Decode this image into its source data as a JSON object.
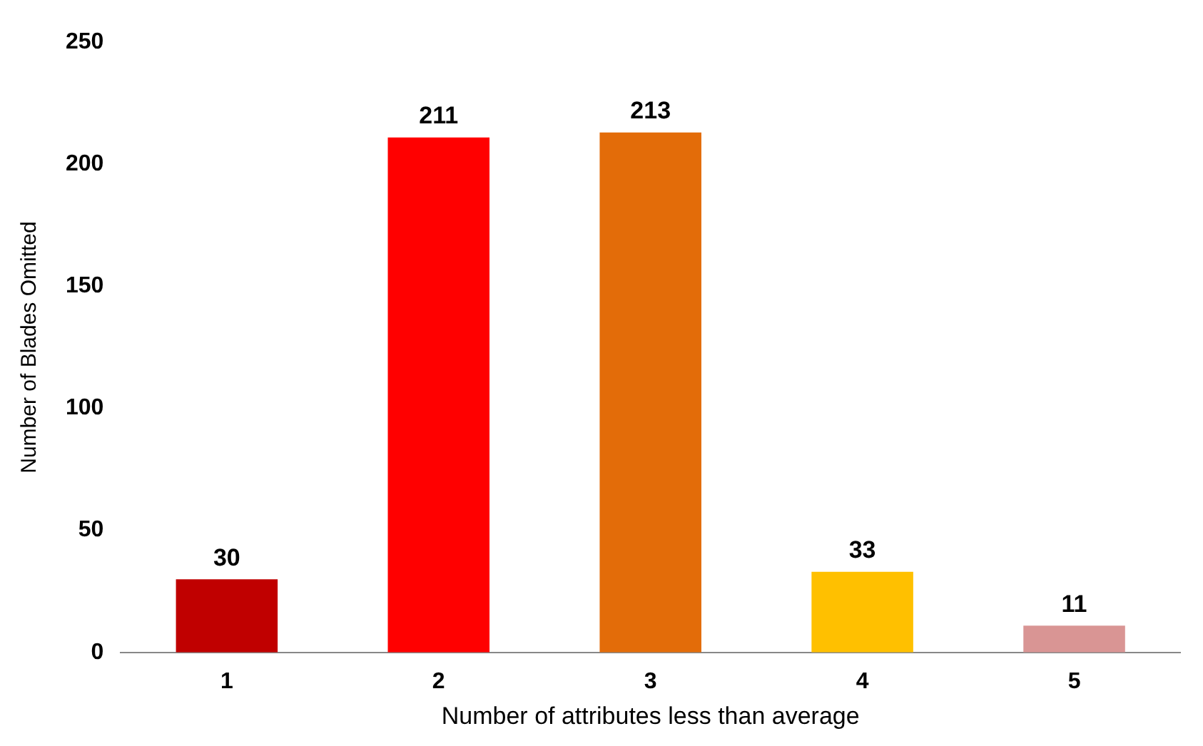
{
  "chart_data": {
    "type": "bar",
    "xlabel": "Number of attributes less than average",
    "ylabel": "Number of Blades Omitted",
    "categories": [
      "1",
      "2",
      "3",
      "4",
      "5"
    ],
    "values": [
      30,
      211,
      213,
      33,
      11
    ],
    "colors": [
      "#c00000",
      "#ff0000",
      "#e36c09",
      "#ffc000",
      "#d99594"
    ],
    "ylim": [
      0,
      250
    ],
    "yticks": [
      0,
      50,
      100,
      150,
      200,
      250
    ],
    "grid": false,
    "legend": false,
    "data_labels": true
  }
}
